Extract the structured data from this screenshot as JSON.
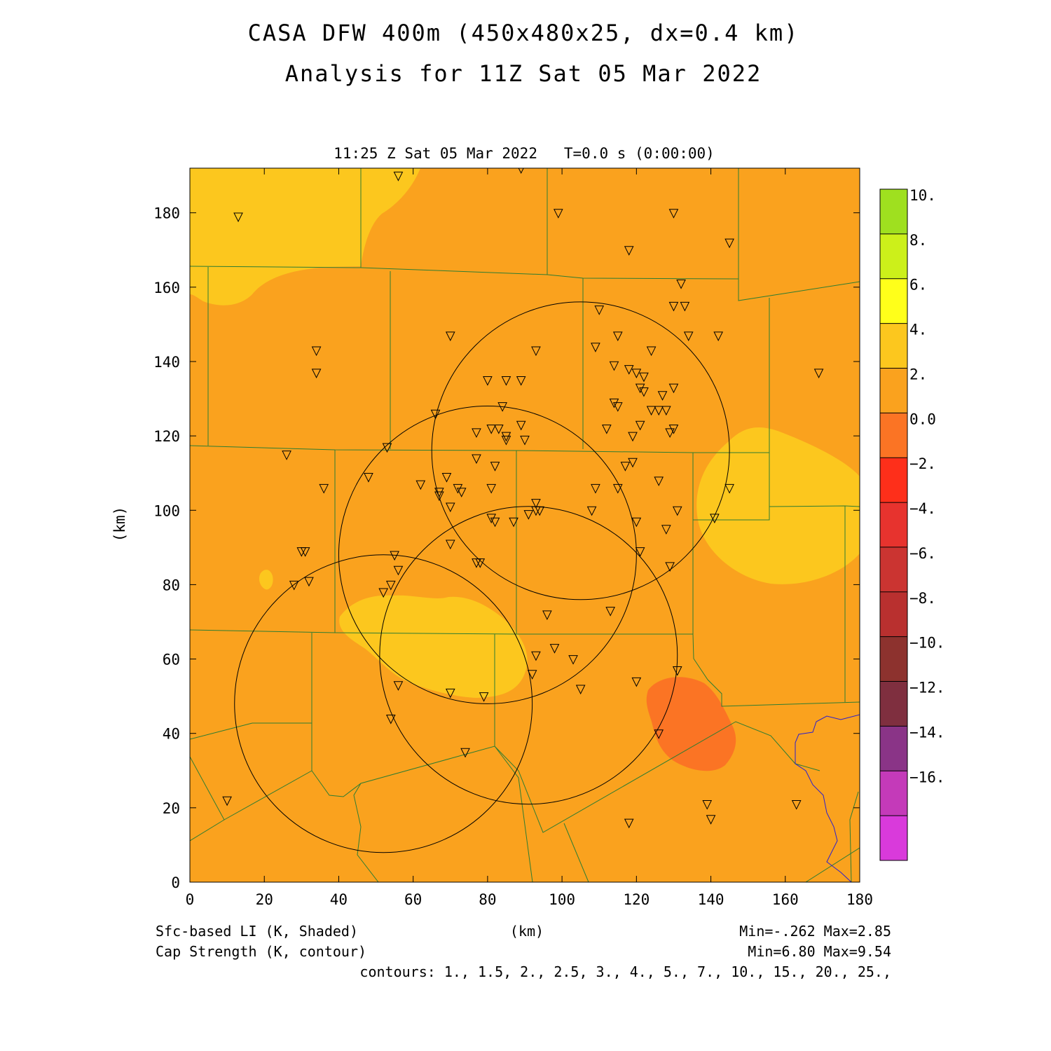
{
  "title": {
    "line1": "CASA DFW 400m (450x480x25, dx=0.4 km)",
    "line2": "Analysis for 11Z Sat 05 Mar 2022"
  },
  "plot": {
    "subtitle": "11:25 Z Sat 05 Mar 2022   T=0.0 s (0:00:00)",
    "xlabel": "(km)",
    "ylabel": "(km)",
    "x_ticks": [
      "0",
      "20",
      "40",
      "60",
      "80",
      "100",
      "120",
      "140",
      "160",
      "180"
    ],
    "y_ticks": [
      "0",
      "20",
      "40",
      "60",
      "80",
      "100",
      "120",
      "140",
      "160",
      "180"
    ],
    "x_range": [
      0,
      180
    ],
    "y_range": [
      0,
      192
    ],
    "background_color": "#FAA21E"
  },
  "colorbar": {
    "labels": [
      "10.",
      "8.",
      "6.",
      "4.",
      "2.",
      "0.0",
      "−2.",
      "−4.",
      "−6.",
      "−8.",
      "−10.",
      "−12.",
      "−14.",
      "−16."
    ],
    "colors": [
      "#9FE01F",
      "#CCF01A",
      "#FFFF1A",
      "#FCC71E",
      "#FAA21E",
      "#FB7424",
      "#FE2F1A",
      "#E7332E",
      "#CB3431",
      "#B9302F",
      "#8D322E",
      "#7F2F3F",
      "#8A3487",
      "#C43AB9",
      "#D93ADB"
    ]
  },
  "footer": {
    "shaded_label": "Sfc-based LI (K, Shaded)",
    "contour_label": "Cap Strength (K, contour)",
    "xaxis_label": "(km)",
    "shaded_minmax": "Min=-.262 Max=2.85",
    "contour_minmax": "Min=6.80 Max=9.54",
    "contours": "contours: 1., 1.5, 2., 2.5, 3., 4., 5., 7., 10., 15., 20., 25.,"
  },
  "map_data": {
    "radar_rings_km": [
      {
        "cx": 52,
        "cy": 48,
        "r": 40
      },
      {
        "cx": 91,
        "cy": 61,
        "r": 40
      },
      {
        "cx": 80,
        "cy": 88,
        "r": 40
      },
      {
        "cx": 105,
        "cy": 116,
        "r": 40
      }
    ],
    "station_markers_km": [
      [
        56,
        190
      ],
      [
        89,
        192
      ],
      [
        13,
        179
      ],
      [
        99,
        180
      ],
      [
        130,
        180
      ],
      [
        145,
        172
      ],
      [
        118,
        170
      ],
      [
        132,
        161
      ],
      [
        110,
        154
      ],
      [
        130,
        155
      ],
      [
        133,
        155
      ],
      [
        134,
        147
      ],
      [
        142,
        147
      ],
      [
        70,
        147
      ],
      [
        34,
        143
      ],
      [
        93,
        143
      ],
      [
        115,
        147
      ],
      [
        109,
        144
      ],
      [
        124,
        143
      ],
      [
        34,
        137
      ],
      [
        169,
        137
      ],
      [
        80,
        135
      ],
      [
        85,
        135
      ],
      [
        89,
        135
      ],
      [
        114,
        139
      ],
      [
        118,
        138
      ],
      [
        120,
        137
      ],
      [
        122,
        136
      ],
      [
        121,
        133
      ],
      [
        122,
        132
      ],
      [
        127,
        131
      ],
      [
        130,
        133
      ],
      [
        114,
        129
      ],
      [
        115,
        128
      ],
      [
        128,
        127
      ],
      [
        124,
        127
      ],
      [
        126,
        127
      ],
      [
        66,
        126
      ],
      [
        84,
        128
      ],
      [
        77,
        121
      ],
      [
        81,
        122
      ],
      [
        83,
        122
      ],
      [
        89,
        123
      ],
      [
        85,
        120
      ],
      [
        85,
        119
      ],
      [
        90,
        119
      ],
      [
        112,
        122
      ],
      [
        121,
        123
      ],
      [
        129,
        121
      ],
      [
        130,
        122
      ],
      [
        119,
        120
      ],
      [
        26,
        115
      ],
      [
        53,
        117
      ],
      [
        77,
        114
      ],
      [
        82,
        112
      ],
      [
        69,
        109
      ],
      [
        48,
        109
      ],
      [
        62,
        107
      ],
      [
        36,
        106
      ],
      [
        67,
        105
      ],
      [
        72,
        106
      ],
      [
        73,
        105
      ],
      [
        81,
        106
      ],
      [
        109,
        106
      ],
      [
        115,
        106
      ],
      [
        117,
        112
      ],
      [
        119,
        113
      ],
      [
        126,
        108
      ],
      [
        145,
        106
      ],
      [
        67,
        104
      ],
      [
        70,
        101
      ],
      [
        93,
        102
      ],
      [
        93,
        100
      ],
      [
        94,
        100
      ],
      [
        108,
        100
      ],
      [
        131,
        100
      ],
      [
        81,
        98
      ],
      [
        82,
        97
      ],
      [
        87,
        97
      ],
      [
        91,
        99
      ],
      [
        120,
        97
      ],
      [
        128,
        95
      ],
      [
        141,
        98
      ],
      [
        70,
        91
      ],
      [
        30,
        89
      ],
      [
        31,
        89
      ],
      [
        55,
        88
      ],
      [
        77,
        86
      ],
      [
        78,
        86
      ],
      [
        121,
        89
      ],
      [
        129,
        85
      ],
      [
        28,
        80
      ],
      [
        32,
        81
      ],
      [
        56,
        84
      ],
      [
        54,
        80
      ],
      [
        52,
        78
      ],
      [
        96,
        72
      ],
      [
        113,
        73
      ],
      [
        98,
        63
      ],
      [
        93,
        61
      ],
      [
        103,
        60
      ],
      [
        92,
        56
      ],
      [
        131,
        57
      ],
      [
        56,
        53
      ],
      [
        70,
        51
      ],
      [
        79,
        50
      ],
      [
        105,
        52
      ],
      [
        120,
        54
      ],
      [
        54,
        44
      ],
      [
        126,
        40
      ],
      [
        74,
        35
      ],
      [
        10,
        22
      ],
      [
        118,
        16
      ],
      [
        139,
        21
      ],
      [
        140,
        17
      ],
      [
        163,
        21
      ]
    ]
  }
}
